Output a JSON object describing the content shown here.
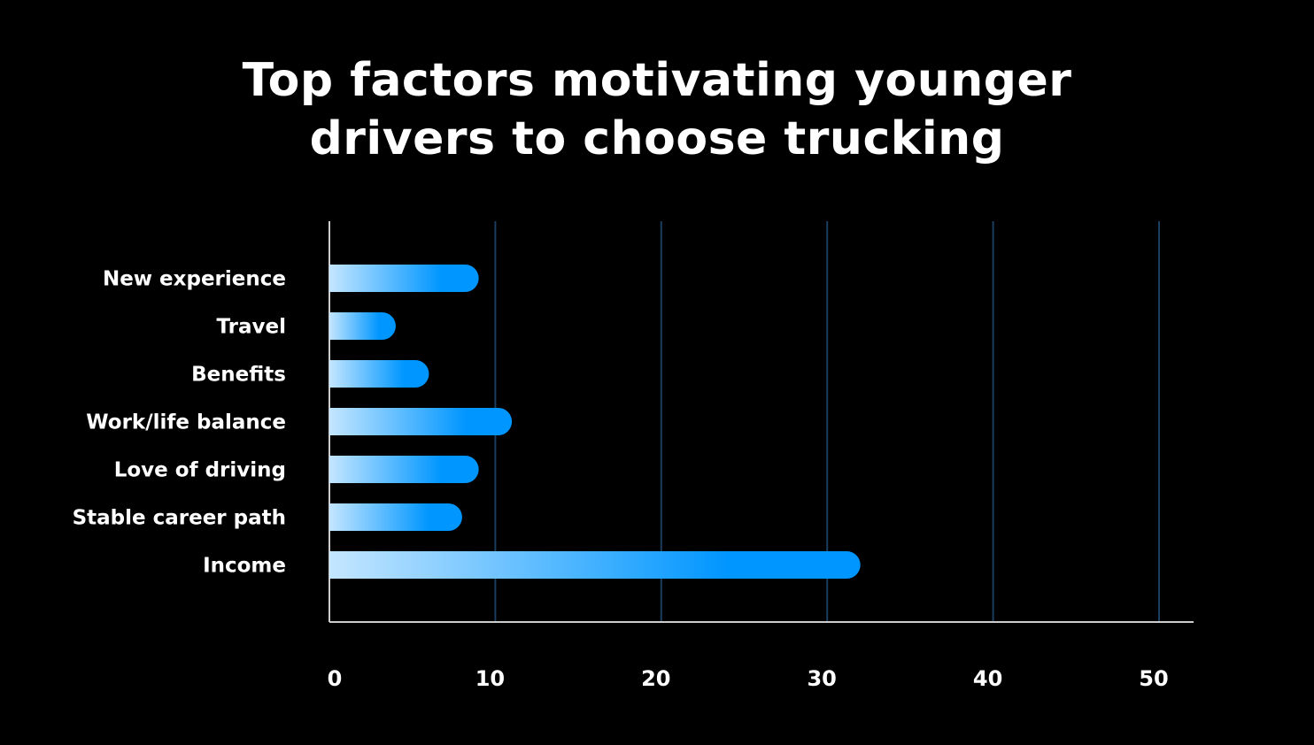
{
  "chart_data": {
    "type": "bar",
    "orientation": "horizontal",
    "title_lines": [
      "Top factors motivating younger",
      "drivers to choose trucking"
    ],
    "categories": [
      "New experience",
      "Travel",
      "Benefits",
      "Work/life balance",
      "Love of driving",
      "Stable career path",
      "Income"
    ],
    "values": [
      9,
      4,
      6,
      11,
      9,
      8,
      32
    ],
    "xlim": [
      0,
      50
    ],
    "xticks": [
      0,
      10,
      20,
      30,
      40,
      50
    ],
    "xlabel": "",
    "ylabel": "",
    "grid": true,
    "colors": {
      "background": "#000000",
      "grid": "#1b3d5e",
      "axis": "#cccccc",
      "bar_start": "#c4e6ff",
      "bar_end": "#0096ff",
      "text": "#ffffff"
    }
  }
}
